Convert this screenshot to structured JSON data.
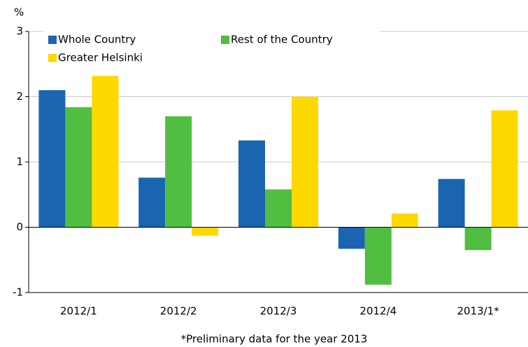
{
  "chart_data": {
    "type": "bar",
    "y_label": "%",
    "footnote": "*Preliminary data for the year 2013",
    "categories": [
      "2012/1",
      "2012/2",
      "2012/3",
      "2012/4",
      "2013/1*"
    ],
    "series": [
      {
        "name": "Whole Country",
        "color": "#1a64b0",
        "values": [
          2.1,
          0.76,
          1.33,
          -0.33,
          0.74
        ]
      },
      {
        "name": "Rest of the Country",
        "color": "#50be40",
        "values": [
          1.84,
          1.7,
          0.58,
          -0.88,
          -0.35
        ]
      },
      {
        "name": "Greater Helsinki",
        "color": "#ffd800",
        "values": [
          2.32,
          -0.13,
          2.0,
          0.21,
          1.79
        ]
      }
    ],
    "ylim": [
      -1,
      3
    ],
    "yticks": [
      -1,
      0,
      1,
      2,
      3
    ],
    "grid": true,
    "legend": "upper-left"
  }
}
